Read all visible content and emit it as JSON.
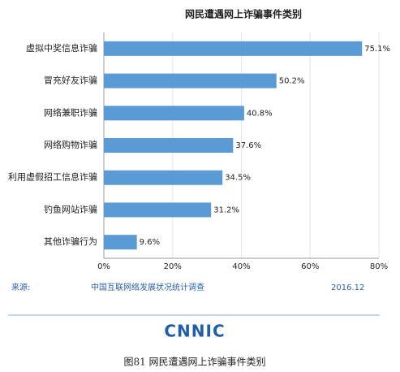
{
  "chart_data": {
    "type": "bar",
    "orientation": "horizontal",
    "title": "网民遭遇网上诈骗事件类别",
    "categories": [
      "虚拟中奖信息诈骗",
      "冒充好友诈骗",
      "网络兼职诈骗",
      "网络购物诈骗",
      "利用虚假招工信息诈骗",
      "钓鱼网站诈骗",
      "其他诈骗行为"
    ],
    "values": [
      75.1,
      50.2,
      40.8,
      37.6,
      34.5,
      31.2,
      9.6
    ],
    "value_labels": [
      "75.1%",
      "50.2%",
      "40.8%",
      "37.6%",
      "34.5%",
      "31.2%",
      "9.6%"
    ],
    "color": "#5b9bd5",
    "xlim": [
      0,
      80
    ],
    "xticks": [
      {
        "value": 0,
        "label": "0%"
      },
      {
        "value": 20,
        "label": "20%"
      },
      {
        "value": 40,
        "label": "40%"
      },
      {
        "value": 60,
        "label": "60%"
      },
      {
        "value": 80,
        "label": "80%"
      }
    ],
    "grid": true
  },
  "footer": {
    "source_label": "来源:",
    "source": "中国互联网络发展状况统计调查",
    "date": "2016.12",
    "logo": "CNNIC",
    "caption": "图81  网民遭遇网上诈骗事件类别"
  }
}
